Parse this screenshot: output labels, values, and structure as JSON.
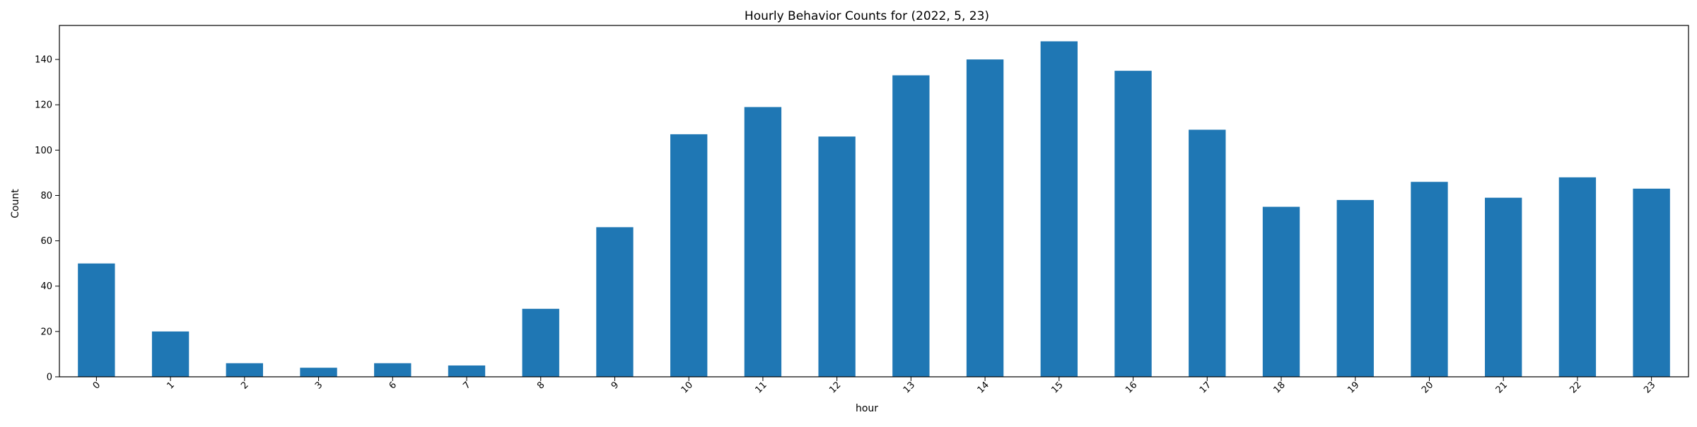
{
  "chart_data": {
    "type": "bar",
    "title": "Hourly Behavior Counts for (2022, 5, 23)",
    "xlabel": "hour",
    "ylabel": "Count",
    "categories": [
      "0",
      "1",
      "2",
      "3",
      "6",
      "7",
      "8",
      "9",
      "10",
      "11",
      "12",
      "13",
      "14",
      "15",
      "16",
      "17",
      "18",
      "19",
      "20",
      "21",
      "22",
      "23"
    ],
    "values": [
      50,
      20,
      6,
      4,
      6,
      5,
      30,
      66,
      107,
      119,
      106,
      133,
      140,
      148,
      135,
      109,
      75,
      78,
      86,
      79,
      88,
      83
    ],
    "ylim": [
      0,
      155
    ],
    "yticks": [
      0,
      20,
      40,
      60,
      80,
      100,
      120,
      140
    ],
    "grid": false,
    "bar_color": "#1f77b4"
  }
}
